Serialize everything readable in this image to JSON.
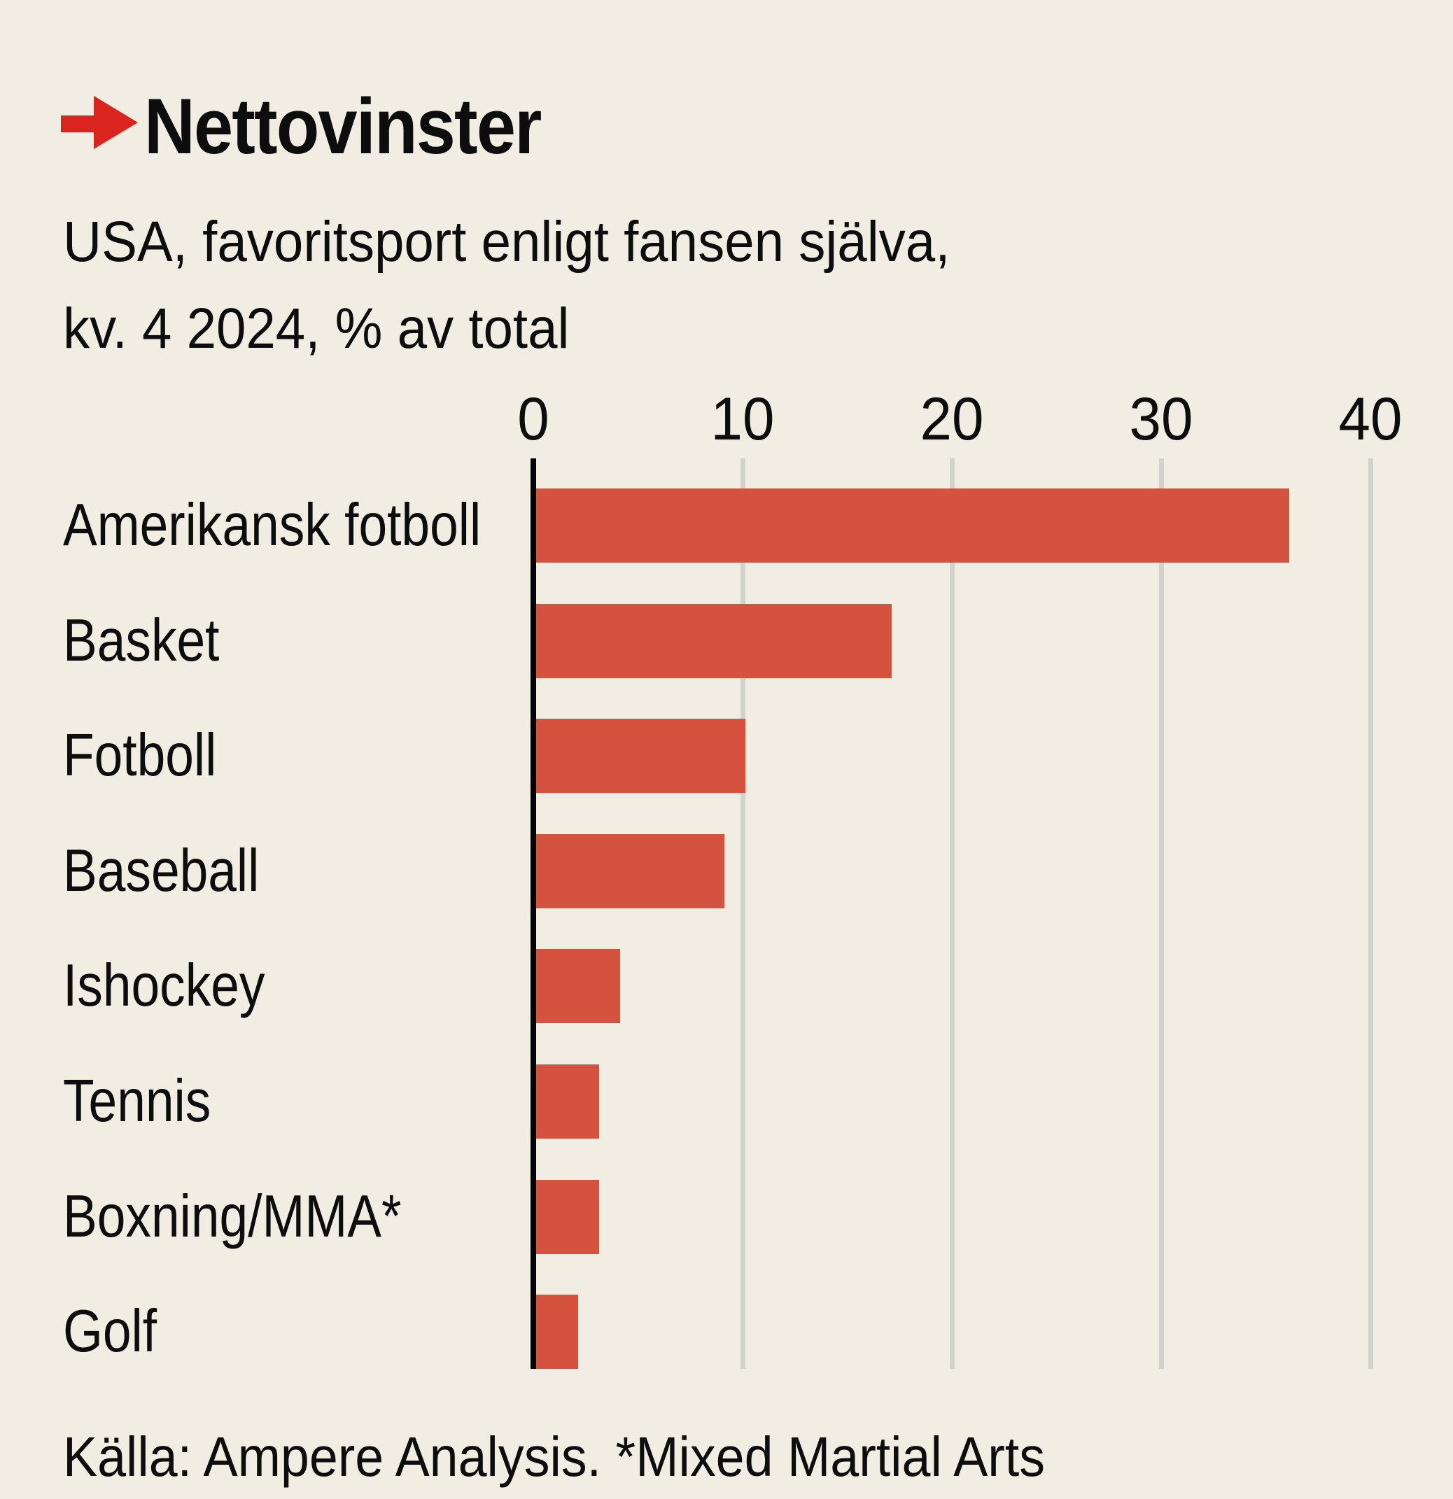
{
  "page": {
    "background": "#f1ede3",
    "text_color": "#0d0d0d"
  },
  "header": {
    "title": "Nettovinster",
    "arrow_icon": "red-arrow-right-icon",
    "arrow_color": "#d9251d"
  },
  "subtitle": {
    "line1": "USA, favoritsport enligt fansen själva,",
    "line2": "kv. 4 2024, % av total"
  },
  "source_note": "Källa: Ampere Analysis. *Mixed Martial Arts",
  "chart_data": {
    "type": "bar",
    "orientation": "horizontal",
    "title": "Nettovinster",
    "subtitle": "USA, favoritsport enligt fansen själva, kv. 4 2024, % av total",
    "categories": [
      "Amerikansk fotboll",
      "Basket",
      "Fotboll",
      "Baseball",
      "Ishockey",
      "Tennis",
      "Boxning/MMA*",
      "Golf"
    ],
    "values": [
      36,
      17,
      10,
      9,
      4,
      3,
      3,
      2
    ],
    "xlabel": "",
    "ylabel": "",
    "xlim": [
      0,
      40
    ],
    "x_ticks": [
      0,
      10,
      20,
      30,
      40
    ],
    "grid": "vertical-gridlines",
    "legend": "none",
    "bar_color": "#d4523e",
    "gridline_color": "#d3d1cc",
    "axis_color": "#000000"
  }
}
